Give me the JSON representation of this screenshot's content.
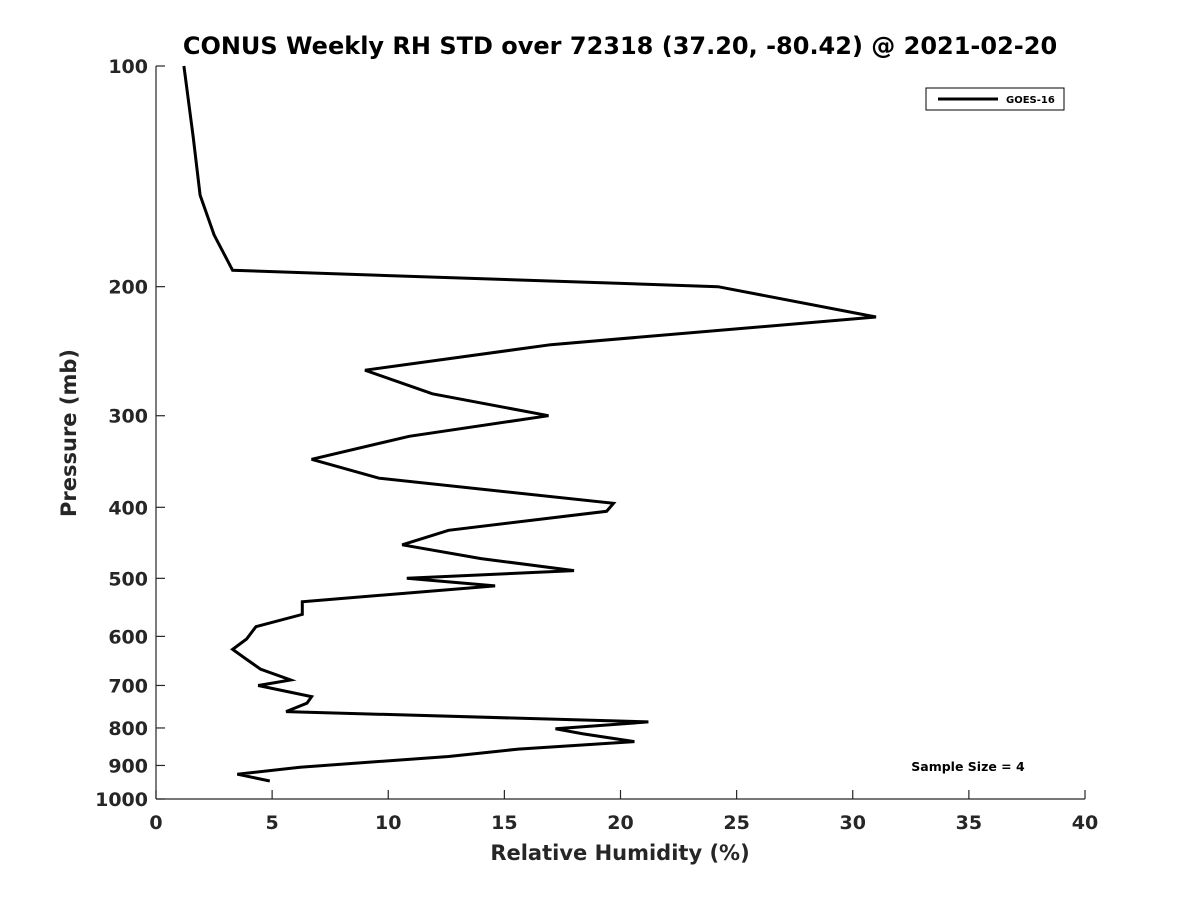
{
  "chart_data": {
    "type": "line",
    "title": "CONUS Weekly RH STD over 72318 (37.20, -80.42) @ 2021-02-20",
    "xlabel": "Relative Humidity (%)",
    "ylabel": "Pressure (mb)",
    "xlim": [
      0,
      40
    ],
    "ylim": [
      100,
      1000
    ],
    "y_scale": "log",
    "y_reversed": true,
    "xticks": [
      0,
      5,
      10,
      15,
      20,
      25,
      30,
      35,
      40
    ],
    "yticks": [
      100,
      200,
      300,
      400,
      500,
      600,
      700,
      800,
      900,
      1000
    ],
    "legend_position": "top-right",
    "grid": false,
    "annotation": "Sample Size = 4",
    "series": [
      {
        "name": "GOES-16",
        "color": "#000000",
        "points": [
          [
            1.2,
            100
          ],
          [
            1.6,
            125
          ],
          [
            1.9,
            150
          ],
          [
            2.5,
            170
          ],
          [
            3.3,
            190
          ],
          [
            24.2,
            200
          ],
          [
            31.0,
            220
          ],
          [
            17.0,
            240
          ],
          [
            9.0,
            260
          ],
          [
            11.9,
            280
          ],
          [
            16.9,
            300
          ],
          [
            10.9,
            320
          ],
          [
            6.7,
            344
          ],
          [
            9.6,
            365
          ],
          [
            19.7,
            395
          ],
          [
            19.4,
            405
          ],
          [
            12.6,
            430
          ],
          [
            10.6,
            450
          ],
          [
            14.0,
            470
          ],
          [
            18.0,
            488
          ],
          [
            10.8,
            500
          ],
          [
            14.6,
            512
          ],
          [
            6.3,
            538
          ],
          [
            6.3,
            560
          ],
          [
            4.3,
            582
          ],
          [
            3.9,
            605
          ],
          [
            3.3,
            625
          ],
          [
            3.9,
            645
          ],
          [
            4.5,
            665
          ],
          [
            5.8,
            688
          ],
          [
            4.4,
            700
          ],
          [
            6.7,
            725
          ],
          [
            6.5,
            740
          ],
          [
            5.6,
            760
          ],
          [
            21.2,
            785
          ],
          [
            17.2,
            802
          ],
          [
            18.4,
            815
          ],
          [
            20.6,
            835
          ],
          [
            15.6,
            855
          ],
          [
            12.6,
            875
          ],
          [
            6.2,
            905
          ],
          [
            3.5,
            925
          ],
          [
            4.9,
            945
          ]
        ]
      }
    ]
  }
}
